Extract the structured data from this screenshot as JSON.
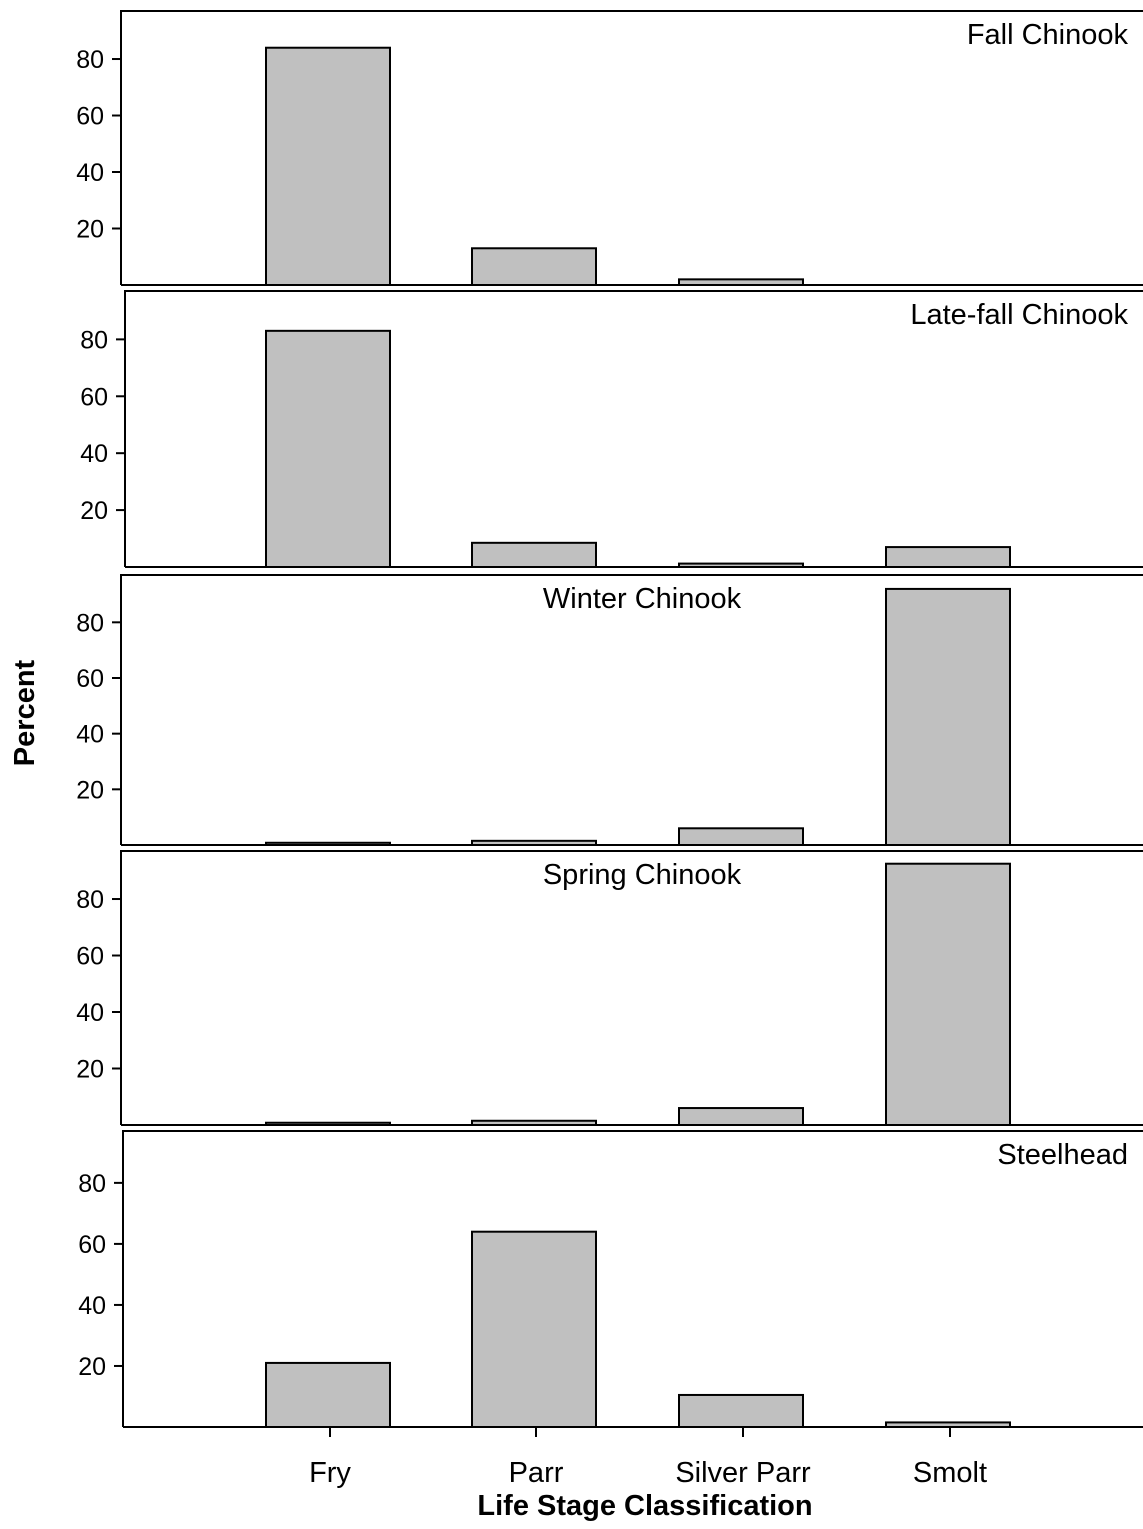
{
  "chart_data": {
    "type": "bar",
    "xlabel": "Life Stage Classification",
    "ylabel": "Percent",
    "categories": [
      "Fry",
      "Parr",
      "Silver Parr",
      "Smolt"
    ],
    "yticks": [
      20,
      40,
      60,
      80
    ],
    "colors": {
      "bar_fill": "#c0c0c0",
      "bar_stroke": "#000000"
    },
    "grid": false,
    "panels": [
      {
        "title": "Fall Chinook",
        "title_align": "right",
        "ylim": [
          0,
          97
        ],
        "values": [
          84,
          13,
          2,
          0
        ]
      },
      {
        "title": "Late-fall Chinook",
        "title_align": "right",
        "ylim": [
          0,
          97
        ],
        "values": [
          83,
          8.5,
          1.2,
          7
        ]
      },
      {
        "title": "Winter Chinook",
        "title_align": "center",
        "ylim": [
          0,
          97
        ],
        "values": [
          0.8,
          1.5,
          6,
          92
        ]
      },
      {
        "title": "Spring Chinook",
        "title_align": "center",
        "ylim": [
          0,
          97
        ],
        "values": [
          0.8,
          1.5,
          6,
          92.5
        ]
      },
      {
        "title": "Steelhead",
        "title_align": "right",
        "ylim": [
          0,
          97
        ],
        "values": [
          21,
          64,
          10.5,
          1.5
        ]
      }
    ]
  }
}
